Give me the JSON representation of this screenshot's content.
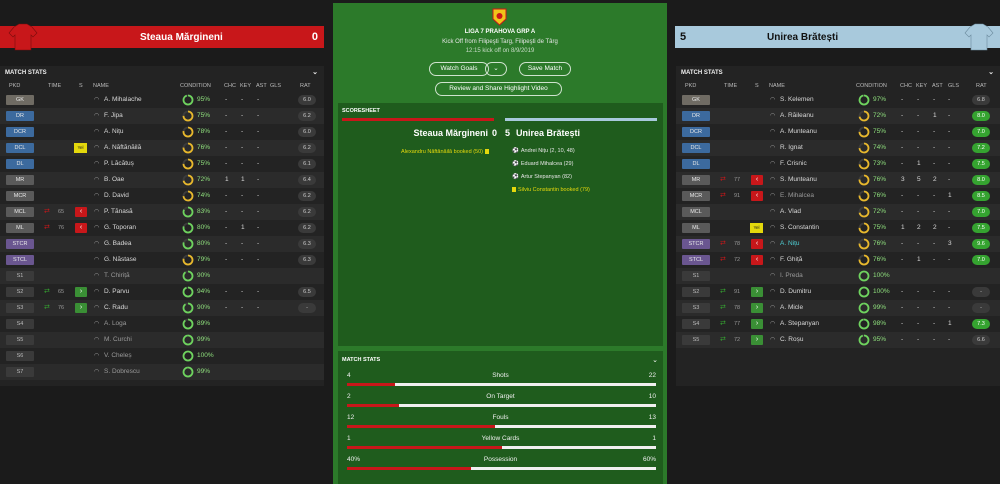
{
  "home": {
    "name": "Steaua Mărgineni",
    "score": "0",
    "kit_color": "#c8171a"
  },
  "away": {
    "name": "Unirea Brătești",
    "score": "5",
    "kit_color": "#a8c9dc"
  },
  "competition": {
    "title": "LIGA 7 PRAHOVA GRP A",
    "kickoff": "Kick Off from Filipeşti Targ, Filipeşti de Târg",
    "time": "12:15 kick off on 8/9/2019"
  },
  "buttons": {
    "watch_goals": "Watch Goals",
    "save_match": "Save Match",
    "review": "Review and Share Highlight Video"
  },
  "columns": {
    "pkd": "PKD",
    "time": "TIME",
    "s": "S",
    "name": "NAME",
    "condition": "CONDITION",
    "chc": "CHC",
    "key": "KEY",
    "ast": "AST",
    "gls": "GLS",
    "rat": "RAT"
  },
  "panel_title": "MATCH STATS",
  "home_players": [
    {
      "pos": "GK",
      "cls": "gk",
      "name": "A. Mihalache",
      "cond": "95%",
      "chc": "-",
      "key": "-",
      "ast": "-",
      "rat": "6.0"
    },
    {
      "pos": "DR",
      "cls": "d",
      "name": "F. Jipa",
      "cond": "75%",
      "chc": "-",
      "key": "-",
      "ast": "-",
      "rat": "6.2"
    },
    {
      "pos": "DCR",
      "cls": "d",
      "name": "A. Nițu",
      "cond": "78%",
      "chc": "-",
      "key": "-",
      "ast": "-",
      "rat": "6.0"
    },
    {
      "pos": "DCL",
      "cls": "d",
      "name": "A. Năftănăilă",
      "cond": "76%",
      "chc": "-",
      "key": "-",
      "ast": "-",
      "rat": "6.2",
      "card": "Yel"
    },
    {
      "pos": "DL",
      "cls": "d",
      "name": "P. Lăcătuș",
      "cond": "75%",
      "chc": "-",
      "key": "-",
      "ast": "-",
      "rat": "6.1"
    },
    {
      "pos": "MR",
      "cls": "m",
      "name": "B. Oae",
      "cond": "72%",
      "chc": "1",
      "key": "1",
      "ast": "-",
      "rat": "6.4"
    },
    {
      "pos": "MCR",
      "cls": "m",
      "name": "D. David",
      "cond": "74%",
      "chc": "-",
      "key": "-",
      "ast": "-",
      "rat": "6.2"
    },
    {
      "pos": "MCL",
      "cls": "m",
      "name": "P. Tănasă",
      "cond": "83%",
      "chc": "-",
      "key": "-",
      "ast": "-",
      "rat": "6.2",
      "time": "65",
      "sub": "out"
    },
    {
      "pos": "ML",
      "cls": "m",
      "name": "G. Toporan",
      "cond": "80%",
      "chc": "-",
      "key": "1",
      "ast": "-",
      "rat": "6.2",
      "time": "76",
      "sub": "out"
    },
    {
      "pos": "STCR",
      "cls": "st",
      "name": "G. Badea",
      "cond": "80%",
      "chc": "-",
      "key": "-",
      "ast": "-",
      "rat": "6.3"
    },
    {
      "pos": "STCL",
      "cls": "st",
      "name": "G. Năstase",
      "cond": "79%",
      "chc": "-",
      "key": "-",
      "ast": "-",
      "rat": "6.3"
    },
    {
      "pos": "S1",
      "cls": "sub",
      "name": "T. Chiriță",
      "cond": "90%",
      "dim": true
    },
    {
      "pos": "S2",
      "cls": "sub",
      "name": "D. Parvu",
      "cond": "94%",
      "chc": "-",
      "key": "-",
      "ast": "-",
      "rat": "6.5",
      "time": "65",
      "sub": "in"
    },
    {
      "pos": "S3",
      "cls": "sub",
      "name": "C. Radu",
      "cond": "90%",
      "chc": "-",
      "key": "-",
      "ast": "-",
      "rat": "-",
      "time": "76",
      "sub": "in"
    },
    {
      "pos": "S4",
      "cls": "sub",
      "name": "A. Loga",
      "cond": "89%",
      "dim": true
    },
    {
      "pos": "S5",
      "cls": "sub",
      "name": "M. Curchi",
      "cond": "99%",
      "dim": true
    },
    {
      "pos": "S6",
      "cls": "sub",
      "name": "V. Cheleș",
      "cond": "100%",
      "dim": true
    },
    {
      "pos": "S7",
      "cls": "sub",
      "name": "S. Dobrescu",
      "cond": "99%",
      "dim": true
    }
  ],
  "away_players": [
    {
      "pos": "GK",
      "cls": "gk",
      "name": "S. Kelemen",
      "cond": "97%",
      "chc": "-",
      "key": "-",
      "ast": "-",
      "gls": "-",
      "rat": "6.8"
    },
    {
      "pos": "DR",
      "cls": "d",
      "name": "A. Răileanu",
      "cond": "72%",
      "chc": "-",
      "key": "-",
      "ast": "1",
      "gls": "-",
      "rat": "8.0",
      "g": true
    },
    {
      "pos": "DCR",
      "cls": "d",
      "name": "A. Munteanu",
      "cond": "75%",
      "chc": "-",
      "key": "-",
      "ast": "-",
      "gls": "-",
      "rat": "7.0",
      "g": true
    },
    {
      "pos": "DCL",
      "cls": "d",
      "name": "R. Ignat",
      "cond": "74%",
      "chc": "-",
      "key": "-",
      "ast": "-",
      "gls": "-",
      "rat": "7.2",
      "g": true
    },
    {
      "pos": "DL",
      "cls": "d",
      "name": "F. Crisnic",
      "cond": "73%",
      "chc": "-",
      "key": "1",
      "ast": "-",
      "gls": "-",
      "rat": "7.5",
      "g": true
    },
    {
      "pos": "MR",
      "cls": "m",
      "name": "S. Munteanu",
      "cond": "76%",
      "chc": "3",
      "key": "5",
      "ast": "2",
      "gls": "-",
      "rat": "8.0",
      "g": true,
      "time": "77",
      "sub": "out"
    },
    {
      "pos": "MCR",
      "cls": "m",
      "name": "E. Mihalcea",
      "cond": "76%",
      "chc": "-",
      "key": "-",
      "ast": "-",
      "gls": "1",
      "rat": "8.5",
      "g": true,
      "time": "91",
      "sub": "out",
      "dim": true
    },
    {
      "pos": "MCL",
      "cls": "m",
      "name": "A. Vlad",
      "cond": "72%",
      "chc": "-",
      "key": "-",
      "ast": "-",
      "gls": "-",
      "rat": "7.0",
      "g": true
    },
    {
      "pos": "ML",
      "cls": "m",
      "name": "S. Constantin",
      "cond": "75%",
      "chc": "1",
      "key": "2",
      "ast": "2",
      "gls": "-",
      "rat": "7.5",
      "g": true,
      "card": "Yel"
    },
    {
      "pos": "STCR",
      "cls": "st",
      "name": "A. Nițu",
      "cond": "76%",
      "chc": "-",
      "key": "-",
      "ast": "-",
      "gls": "3",
      "rat": "9.6",
      "g": true,
      "time": "78",
      "sub": "out",
      "hi": true
    },
    {
      "pos": "STCL",
      "cls": "st",
      "name": "F. Ghiță",
      "cond": "76%",
      "chc": "-",
      "key": "1",
      "ast": "-",
      "gls": "-",
      "rat": "7.0",
      "g": true,
      "time": "72",
      "sub": "out"
    },
    {
      "pos": "S1",
      "cls": "sub",
      "name": "I. Preda",
      "cond": "100%",
      "dim": true
    },
    {
      "pos": "S2",
      "cls": "sub",
      "name": "D. Dumitru",
      "cond": "100%",
      "chc": "-",
      "key": "-",
      "ast": "-",
      "gls": "-",
      "rat": "-",
      "time": "91",
      "sub": "in"
    },
    {
      "pos": "S3",
      "cls": "sub",
      "name": "A. Micle",
      "cond": "99%",
      "chc": "-",
      "key": "-",
      "ast": "-",
      "gls": "-",
      "rat": "-",
      "time": "78",
      "sub": "in"
    },
    {
      "pos": "S4",
      "cls": "sub",
      "name": "A. Stepanyan",
      "cond": "98%",
      "chc": "-",
      "key": "-",
      "ast": "-",
      "gls": "1",
      "rat": "7.3",
      "g": true,
      "time": "77",
      "sub": "in"
    },
    {
      "pos": "S5",
      "cls": "sub",
      "name": "C. Roșu",
      "cond": "95%",
      "chc": "-",
      "key": "-",
      "ast": "-",
      "gls": "-",
      "rat": "6.6",
      "time": "72",
      "sub": "in"
    }
  ],
  "scoresheet": {
    "title": "SCORESHEET",
    "home_events": [
      {
        "text": "Alexandru Năftănăilă booked (50)",
        "type": "yellow"
      }
    ],
    "away_events": [
      {
        "text": "Andrei Nițu (2, 10, 48)",
        "type": "goal"
      },
      {
        "text": "Eduard Mihalcea (29)",
        "type": "goal"
      },
      {
        "text": "Artur Stepanyan (82)",
        "type": "goal"
      },
      {
        "text": "Silviu Constantin booked (79)",
        "type": "yellow"
      }
    ]
  },
  "match_stats": {
    "title": "MATCH STATS",
    "rows": [
      {
        "label": "Shots",
        "home": "4",
        "away": "22",
        "frac": 0.154
      },
      {
        "label": "On Target",
        "home": "2",
        "away": "10",
        "frac": 0.167
      },
      {
        "label": "Fouls",
        "home": "12",
        "away": "13",
        "frac": 0.48
      },
      {
        "label": "Yellow Cards",
        "home": "1",
        "away": "1",
        "frac": 0.5
      },
      {
        "label": "Possession",
        "home": "40%",
        "away": "60%",
        "frac": 0.4
      }
    ]
  }
}
